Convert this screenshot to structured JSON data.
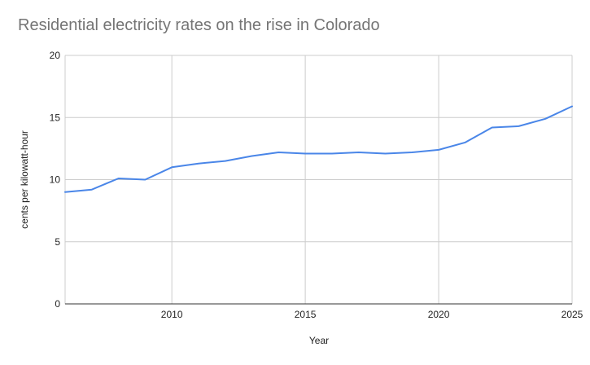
{
  "chart_data": {
    "type": "line",
    "title": "Residential electricity rates on the rise in Colorado",
    "xlabel": "Year",
    "ylabel": "cents per kilowatt-hour",
    "xlim": [
      2006,
      2025
    ],
    "ylim": [
      0,
      20
    ],
    "x_ticks": [
      2010,
      2015,
      2020,
      2025
    ],
    "y_ticks": [
      0,
      5,
      10,
      15,
      20
    ],
    "grid": true,
    "legend": "none",
    "series": [
      {
        "color": "#4a86e8",
        "x": [
          2006,
          2007,
          2008,
          2009,
          2010,
          2011,
          2012,
          2013,
          2014,
          2015,
          2016,
          2017,
          2018,
          2019,
          2020,
          2021,
          2022,
          2023,
          2024,
          2025
        ],
        "values": [
          9.0,
          9.2,
          10.1,
          10.0,
          11.0,
          11.3,
          11.5,
          11.9,
          12.2,
          12.1,
          12.1,
          12.2,
          12.1,
          12.2,
          12.4,
          13.0,
          14.2,
          14.3,
          14.9,
          15.9
        ]
      }
    ]
  }
}
